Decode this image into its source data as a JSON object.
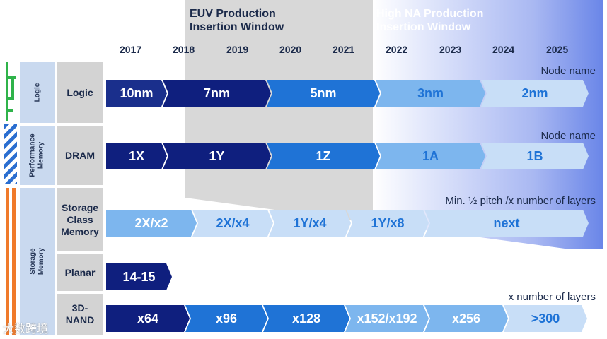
{
  "windows": {
    "euv": "EUV Production\nInsertion Window",
    "high_na": "High NA Production\nInsertion Window"
  },
  "years": [
    "2017",
    "2018",
    "2019",
    "2020",
    "2021",
    "2022",
    "2023",
    "2024",
    "2025"
  ],
  "categories": {
    "logic": "Logic",
    "performance_memory": "Performance\nMemory",
    "storage_memory": "Storage\nMemory"
  },
  "subcategories": {
    "logic": "Logic",
    "dram": "DRAM",
    "scm": "Storage\nClass\nMemory",
    "planar": "Planar",
    "nand3d": "3D-\nNAND"
  },
  "notes": {
    "logic": "Node name",
    "dram": "Node name",
    "scm": "Min. ½ pitch /x number of layers",
    "nand3d": "x number of layers"
  },
  "rows": {
    "logic": [
      "10nm",
      "7nm",
      "5nm",
      "3nm",
      "2nm"
    ],
    "dram": [
      "1X",
      "1Y",
      "1Z",
      "1A",
      "1B"
    ],
    "scm": [
      "2X/x2",
      "2X/x4",
      "1Y/x4",
      "1Y/x8",
      "next"
    ],
    "planar": [
      "14-15"
    ],
    "nand3d": [
      "x64",
      "x96",
      "x128",
      "x152/x192",
      "x256",
      ">300"
    ]
  },
  "colors": {
    "navy": "#1a2f8c",
    "darkblue": "#0f1f7e",
    "blue": "#1f73d6",
    "midblue": "#7db6ee",
    "lightblue": "#c8def7",
    "gray_window": "#d6d6d6",
    "high_na_blue": "#6a86e8"
  },
  "watermark": "大数跨境"
}
